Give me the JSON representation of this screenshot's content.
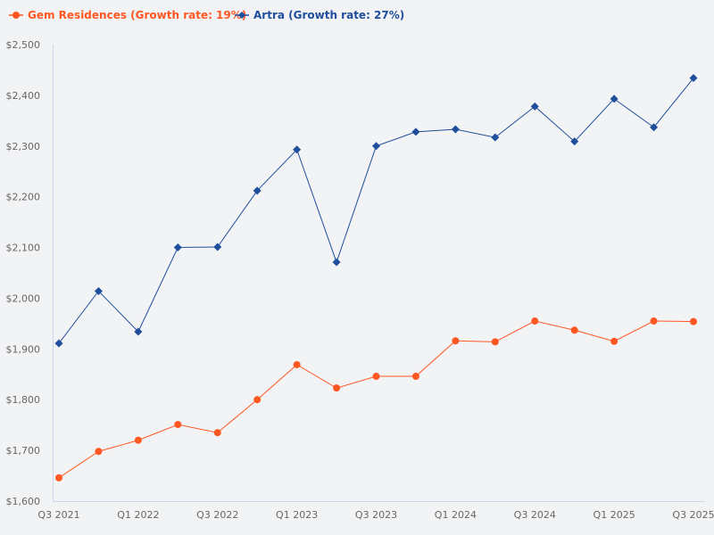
{
  "chart_data": {
    "type": "line",
    "title": "",
    "xlabel": "",
    "ylabel": "",
    "ylim": [
      1600,
      2500
    ],
    "y_ticks": [
      "$1,600",
      "$1,700",
      "$1,800",
      "$1,900",
      "$2,000",
      "$2,100",
      "$2,200",
      "$2,300",
      "$2,400",
      "$2,500"
    ],
    "y_tick_values": [
      1600,
      1700,
      1800,
      1900,
      2000,
      2100,
      2200,
      2300,
      2400,
      2500
    ],
    "x": [
      "Q3 2021",
      "Q4 2021",
      "Q1 2022",
      "Q2 2022",
      "Q3 2022",
      "Q4 2022",
      "Q1 2023",
      "Q2 2023",
      "Q3 2023",
      "Q4 2023",
      "Q1 2024",
      "Q2 2024",
      "Q3 2024",
      "Q4 2024",
      "Q1 2025",
      "Q2 2025",
      "Q3 2025"
    ],
    "x_tick_labels": [
      "Q3 2021",
      "Q1 2022",
      "Q3 2022",
      "Q1 2023",
      "Q3 2023",
      "Q1 2024",
      "Q3 2024",
      "Q1 2025",
      "Q3 2025"
    ],
    "grid": false,
    "legend_position": "top-left",
    "series": [
      {
        "name": "Gem Residences (Growth rate: 19%)",
        "color": "#ff5722",
        "marker": "circle",
        "values": [
          1646,
          1698,
          1720,
          1751,
          1735,
          1800,
          1869,
          1823,
          1846,
          1846,
          1916,
          1914,
          1955,
          1937,
          1915,
          1955,
          1954
        ]
      },
      {
        "name": "Artra (Growth rate: 27%)",
        "color": "#1f4e9c",
        "marker": "diamond",
        "values": [
          1911,
          2014,
          1934,
          2100,
          2101,
          2212,
          2293,
          2071,
          2300,
          2328,
          2333,
          2317,
          2378,
          2309,
          2393,
          2337,
          2434
        ]
      }
    ]
  }
}
